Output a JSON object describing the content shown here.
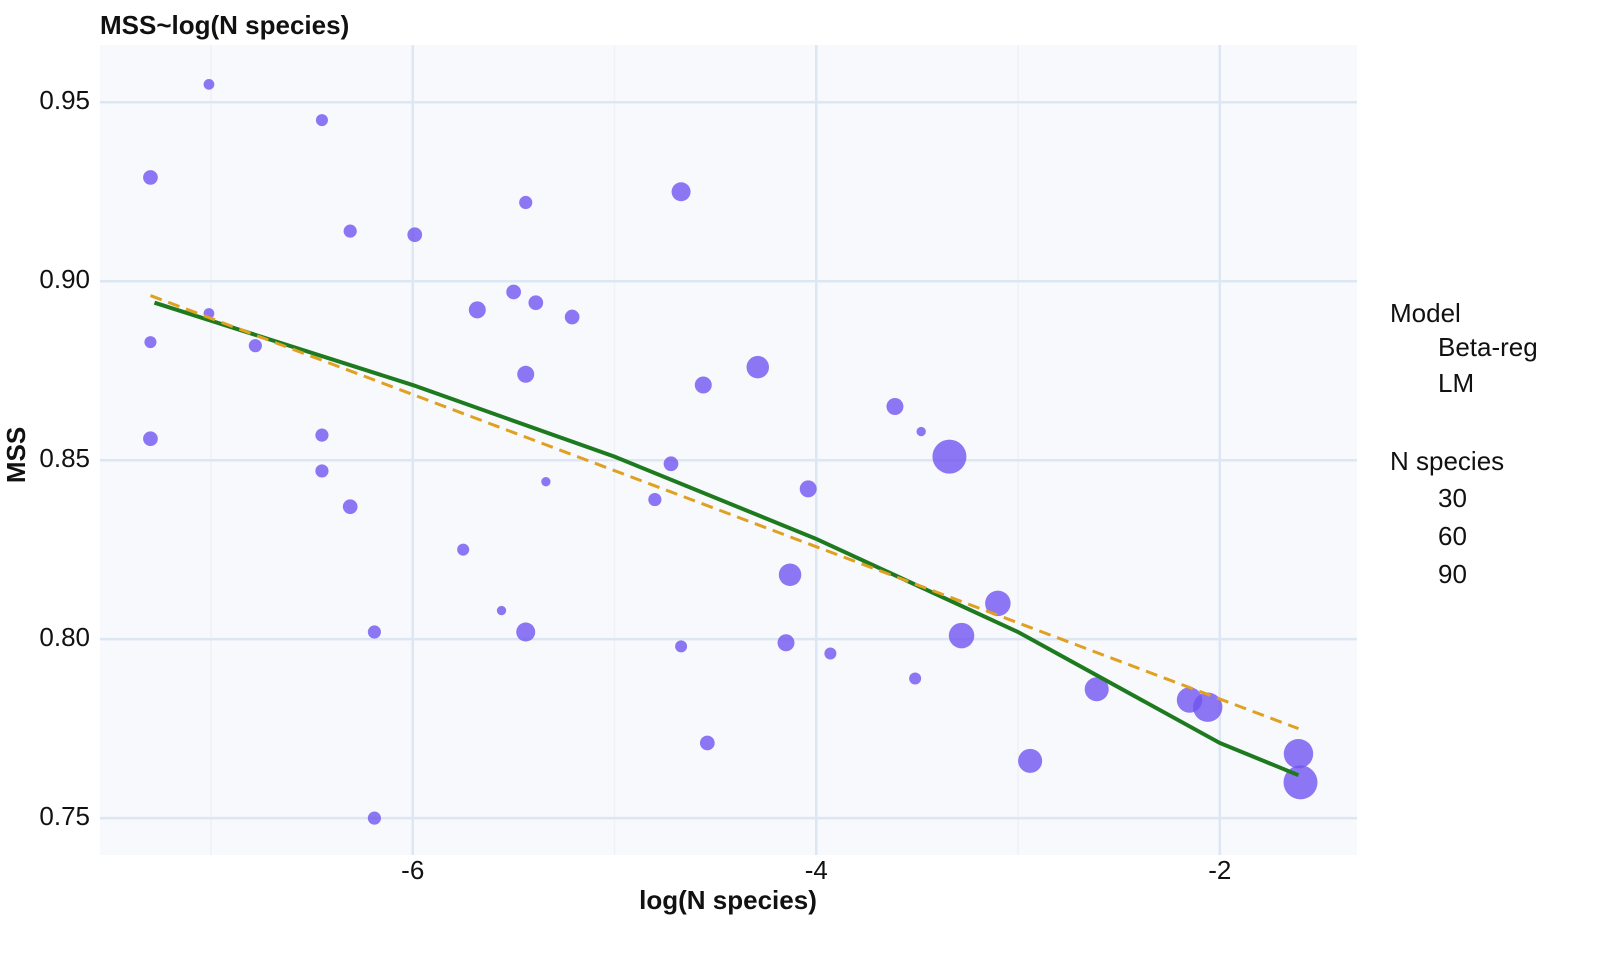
{
  "chart_data": {
    "type": "scatter",
    "title": "MSS~log(N species)",
    "x_label": "log(N species)",
    "y_label": "MSS",
    "xlim": [
      -7.55,
      -1.32
    ],
    "ylim": [
      0.7397,
      0.966
    ],
    "xticks": [
      -6,
      -4,
      -2
    ],
    "x_minor_grid": [
      -7,
      -5,
      -3
    ],
    "yticks": [
      0.75,
      {
        "value": 0.8,
        "label": "0.80"
      },
      0.85,
      {
        "value": 0.9,
        "label": "0.90"
      },
      0.95
    ],
    "grid": true,
    "points": {
      "color": "#7055f0",
      "x": [
        -7.3,
        -7.01,
        -7.3,
        -7.3,
        -7.01,
        -6.78,
        -6.45,
        -6.31,
        -6.45,
        -6.45,
        -6.31,
        -6.19,
        -6.19,
        -5.99,
        -5.75,
        -5.68,
        -5.56,
        -5.5,
        -5.44,
        -5.39,
        -5.44,
        -5.44,
        -5.34,
        -5.21,
        -4.72,
        -4.8,
        -4.67,
        -4.67,
        -4.56,
        -4.54,
        -4.29,
        -4.13,
        -4.15,
        -4.04,
        -3.93,
        -3.61,
        -3.48,
        -3.51,
        -3.34,
        -3.28,
        -3.1,
        -2.94,
        -2.61,
        -2.15,
        -2.06,
        -1.61,
        -1.6
      ],
      "y": [
        0.929,
        0.955,
        0.883,
        0.856,
        0.891,
        0.882,
        0.945,
        0.914,
        0.857,
        0.847,
        0.837,
        0.802,
        0.75,
        0.913,
        0.825,
        0.892,
        0.808,
        0.897,
        0.922,
        0.894,
        0.874,
        0.802,
        0.844,
        0.89,
        0.849,
        0.839,
        0.925,
        0.798,
        0.871,
        0.771,
        0.876,
        0.818,
        0.799,
        0.842,
        0.796,
        0.865,
        0.858,
        0.789,
        0.851,
        0.801,
        0.81,
        0.766,
        0.786,
        0.783,
        0.781,
        0.768,
        0.76
      ],
      "size": [
        15,
        8,
        10,
        15,
        8,
        12,
        10,
        12,
        12,
        12,
        15,
        12,
        12,
        15,
        10,
        20,
        6,
        15,
        12,
        15,
        20,
        25,
        6,
        15,
        15,
        12,
        25,
        10,
        20,
        15,
        35,
        35,
        20,
        20,
        10,
        20,
        6,
        10,
        80,
        45,
        45,
        40,
        40,
        45,
        60,
        60,
        80
      ]
    },
    "lines": [
      {
        "name": "Beta-reg",
        "color": "#1e7a1e",
        "dash": false,
        "x": [
          -7.28,
          -6,
          -5,
          -4,
          -3,
          -2,
          -1.61
        ],
        "y": [
          0.894,
          0.871,
          0.851,
          0.828,
          0.802,
          0.771,
          0.762
        ]
      },
      {
        "name": "LM",
        "color": "#e0a020",
        "dash": true,
        "x": [
          -7.3,
          -1.61
        ],
        "y": [
          0.896,
          0.775
        ]
      }
    ],
    "legend_title": "Model",
    "size_legend": {
      "title": "N species",
      "values": [
        30,
        60,
        90
      ]
    }
  }
}
